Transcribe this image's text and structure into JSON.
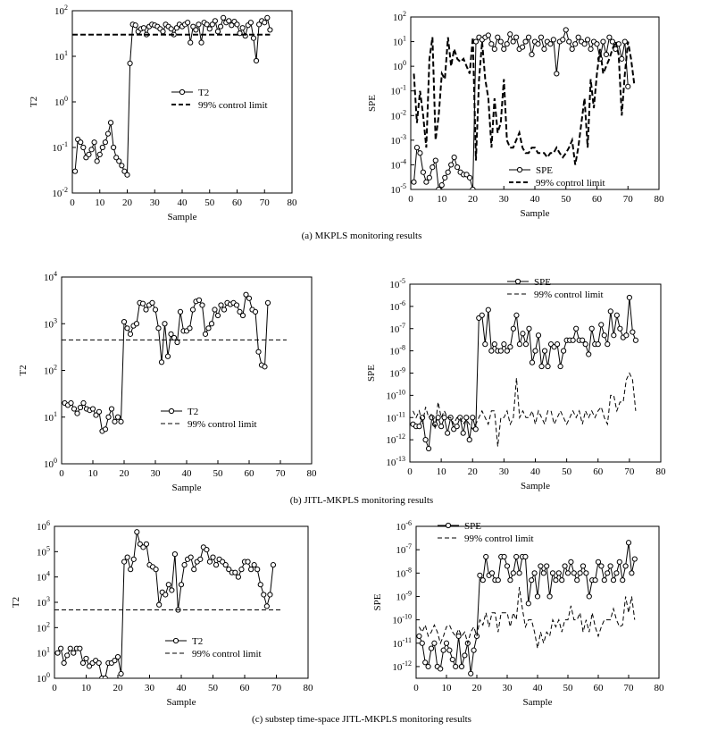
{
  "captions": [
    "(a) MKPLS monitoring results",
    "(b) JITL-MKPLS monitoring results",
    "(c) substep time-space JITL-MKPLS monitoring results"
  ],
  "chart_data": [
    {
      "type": "line",
      "panel": "a-left",
      "xlabel": "Sample",
      "ylabel": "T2",
      "xlim": [
        0,
        80
      ],
      "ylim_exponents": [
        -2,
        2
      ],
      "log_scale_y": true,
      "xticks": [
        0,
        10,
        20,
        30,
        40,
        50,
        60,
        70,
        80
      ],
      "yticks": [
        "10-2",
        "10-1",
        "100",
        "101",
        "102"
      ],
      "legend_position": "center",
      "series": [
        {
          "name": "T2",
          "style": "solid-circle",
          "values": [
            0.03,
            0.15,
            0.13,
            0.1,
            0.06,
            0.07,
            0.09,
            0.13,
            0.05,
            0.07,
            0.1,
            0.13,
            0.2,
            0.35,
            0.1,
            0.06,
            0.05,
            0.04,
            0.03,
            0.025,
            7,
            50,
            48,
            35,
            40,
            42,
            30,
            45,
            50,
            48,
            45,
            40,
            35,
            50,
            45,
            40,
            30,
            42,
            50,
            45,
            50,
            55,
            20,
            45,
            38,
            50,
            20,
            55,
            50,
            40,
            50,
            60,
            35,
            45,
            70,
            55,
            60,
            48,
            58,
            50,
            32,
            42,
            28,
            48,
            55,
            25,
            8,
            50,
            60,
            55,
            70,
            38
          ]
        },
        {
          "name": "99% control limit",
          "style": "thick-dash",
          "constant": 30
        }
      ]
    },
    {
      "type": "line",
      "panel": "a-right",
      "xlabel": "Sample",
      "ylabel": "SPE",
      "xlim": [
        0,
        80
      ],
      "ylim_exponents": [
        -5,
        2
      ],
      "log_scale_y": true,
      "xticks": [
        0,
        10,
        20,
        30,
        40,
        50,
        60,
        70,
        80
      ],
      "yticks": [
        "10-5",
        "10-4",
        "10-3",
        "10-2",
        "10-1",
        "100",
        "101",
        "102"
      ],
      "legend_position": "bottom-center",
      "series": [
        {
          "name": "SPE",
          "style": "solid-circle",
          "values": [
            2e-05,
            0.0005,
            0.0003,
            5e-05,
            2e-05,
            3e-05,
            8e-05,
            0.00015,
            1e-05,
            1.5e-05,
            3e-05,
            5e-05,
            0.0001,
            0.0002,
            8e-05,
            5e-05,
            4e-05,
            4e-05,
            3e-05,
            1e-05,
            10,
            15,
            12,
            15,
            18,
            8,
            5,
            15,
            10,
            5,
            8,
            20,
            10,
            15,
            5,
            6,
            10,
            15,
            3,
            10,
            8,
            15,
            5,
            10,
            8,
            12,
            0.5,
            10,
            12,
            30,
            10,
            5,
            8,
            15,
            10,
            8,
            12,
            5,
            10,
            8,
            2,
            10,
            3,
            15,
            10,
            5,
            8,
            2,
            10,
            0.15
          ]
        },
        {
          "name": "99% control limit",
          "style": "thick-dash",
          "values": [
            0.5,
            0.005,
            0.1,
            0.01,
            0.0005,
            2,
            15,
            0.001,
            0.01,
            0.5,
            0.3,
            15,
            1,
            5,
            2,
            1.5,
            2,
            1,
            0.5,
            15,
            0.00015,
            0.3,
            10,
            0.3,
            0.05,
            0.0005,
            0.05,
            0.002,
            0.005,
            0.3,
            0.001,
            0.0005,
            0.0005,
            0.001,
            0.002,
            0.0005,
            0.0003,
            0.0003,
            0.0005,
            0.0005,
            0.0003,
            0.0003,
            0.0003,
            0.0002,
            0.0003,
            0.0003,
            0.0005,
            0.0003,
            0.0002,
            0.0003,
            0.0005,
            0.001,
            0.0001,
            0.0005,
            0.005,
            0.05,
            0.0005,
            0.3,
            0.02,
            0.5,
            5,
            0.5,
            1,
            2,
            5,
            10,
            3,
            0.01,
            0.5,
            10,
            2,
            0.2
          ]
        }
      ]
    },
    {
      "type": "line",
      "panel": "b-left",
      "xlabel": "Sample",
      "ylabel": "T2",
      "xlim": [
        0,
        80
      ],
      "ylim_exponents": [
        0,
        4
      ],
      "log_scale_y": true,
      "xticks": [
        0,
        10,
        20,
        30,
        40,
        50,
        60,
        70,
        80
      ],
      "yticks": [
        "100",
        "101",
        "102",
        "103",
        "104"
      ],
      "legend_position": "bottom-center",
      "series": [
        {
          "name": "T2",
          "style": "solid-circle",
          "values": [
            20,
            18,
            20,
            15,
            12,
            16,
            20,
            15,
            14,
            15,
            11,
            13,
            5,
            5.5,
            10,
            15,
            8,
            10,
            8,
            1100,
            800,
            600,
            900,
            1000,
            2800,
            2700,
            2000,
            2500,
            2800,
            2000,
            800,
            150,
            1000,
            200,
            600,
            500,
            400,
            1800,
            700,
            700,
            800,
            2000,
            3000,
            3200,
            2500,
            600,
            800,
            1000,
            2000,
            1500,
            2500,
            2000,
            2800,
            2600,
            2800,
            2500,
            1800,
            1500,
            4200,
            3500,
            2000,
            1800,
            250,
            130,
            120,
            2800
          ]
        },
        {
          "name": "99% control limit",
          "style": "thin-dash",
          "constant": 450
        }
      ]
    },
    {
      "type": "line",
      "panel": "b-right",
      "xlabel": "Sample",
      "ylabel": "SPE",
      "xlim": [
        0,
        80
      ],
      "ylim_exponents": [
        -13,
        -5
      ],
      "log_scale_y": true,
      "xticks": [
        0,
        10,
        20,
        30,
        40,
        50,
        60,
        70,
        80
      ],
      "yticks": [
        "10-13",
        "10-12",
        "10-11",
        "10-10",
        "10-9",
        "10-8",
        "10-7",
        "10-6",
        "10-5"
      ],
      "legend_position": "top-left",
      "series": [
        {
          "name": "SPE",
          "style": "solid-circle",
          "values": [
            5e-12,
            4e-12,
            4e-12,
            1e-11,
            1e-12,
            4e-13,
            1e-11,
            5e-12,
            1e-11,
            4e-12,
            1e-11,
            2e-12,
            1e-11,
            3e-12,
            4e-12,
            1e-11,
            2e-12,
            1e-11,
            1e-12,
            1e-11,
            3e-12,
            3e-07,
            4e-07,
            2e-08,
            7e-07,
            1e-08,
            2e-08,
            1e-08,
            1e-08,
            2e-08,
            1e-08,
            1.5e-08,
            1e-07,
            4e-07,
            2e-08,
            6e-08,
            2e-08,
            1e-07,
            3e-09,
            1e-08,
            5e-08,
            2e-09,
            1e-08,
            2e-09,
            2e-08,
            1.5e-08,
            2e-08,
            2e-09,
            1e-08,
            3e-08,
            3e-08,
            3e-08,
            1e-07,
            3e-08,
            3e-08,
            2e-08,
            7e-09,
            1e-07,
            2e-08,
            2e-08,
            1.5e-07,
            5e-08,
            2e-08,
            6e-07,
            5e-08,
            4e-07,
            1e-07,
            4e-08,
            5e-08,
            2.5e-06,
            7e-08,
            3e-08
          ]
        },
        {
          "name": "99% control limit",
          "style": "thin-dash",
          "values": [
            2e-11,
            1e-11,
            2e-11,
            5e-12,
            3e-11,
            1e-11,
            1.5e-11,
            3e-12,
            5e-11,
            1e-11,
            2e-11,
            1e-11,
            1e-11,
            5e-12,
            1e-11,
            1e-11,
            5e-12,
            8e-12,
            5e-12,
            3e-12,
            5e-12,
            1e-11,
            2e-11,
            1e-11,
            5e-12,
            2e-11,
            2e-11,
            5e-13,
            1e-11,
            1e-11,
            2e-11,
            5e-12,
            1e-11,
            6e-10,
            1e-11,
            2e-11,
            1e-11,
            1e-11,
            2e-11,
            5e-12,
            2e-11,
            1e-11,
            5e-12,
            2e-11,
            2e-11,
            5e-12,
            1e-11,
            2e-11,
            1e-11,
            5e-12,
            1e-11,
            2e-11,
            1e-11,
            2e-11,
            5e-12,
            2e-11,
            1e-11,
            2e-11,
            1e-11,
            2e-11,
            3e-11,
            1e-11,
            5e-12,
            1e-10,
            1e-10,
            2e-11,
            5e-11,
            5e-11,
            5e-10,
            1e-09,
            5e-10,
            2e-11
          ]
        }
      ]
    },
    {
      "type": "line",
      "panel": "c-left",
      "xlabel": "Sample",
      "ylabel": "T2",
      "xlim": [
        0,
        80
      ],
      "ylim_exponents": [
        0,
        6
      ],
      "log_scale_y": true,
      "xticks": [
        0,
        10,
        20,
        30,
        40,
        50,
        60,
        70,
        80
      ],
      "yticks": [
        "100",
        "101",
        "102",
        "103",
        "104",
        "105",
        "106"
      ],
      "legend_position": "bottom-center",
      "series": [
        {
          "name": "T2",
          "style": "solid-circle",
          "values": [
            10,
            15,
            4,
            8,
            15,
            10,
            15,
            15,
            4,
            6,
            3,
            4,
            5,
            4,
            1,
            1,
            4,
            4,
            5,
            7,
            1.5,
            40000,
            60000,
            20000,
            50000,
            600000,
            200000,
            150000,
            200000,
            30000,
            25000,
            20000,
            800,
            2500,
            2000,
            5000,
            3000,
            80000,
            500,
            5000,
            30000,
            50000,
            60000,
            20000,
            40000,
            50000,
            150000,
            120000,
            40000,
            60000,
            30000,
            50000,
            40000,
            30000,
            20000,
            15000,
            15000,
            10000,
            20000,
            40000,
            40000,
            20000,
            30000,
            20000,
            5000,
            2000,
            700,
            2000,
            30000
          ]
        },
        {
          "name": "99% control limit",
          "style": "thin-dash",
          "constant": 500
        }
      ]
    },
    {
      "type": "line",
      "panel": "c-right",
      "xlabel": "Sample",
      "ylabel": "SPE",
      "xlim": [
        0,
        80
      ],
      "ylim_exponents": [
        -12.5,
        -6
      ],
      "log_scale_y": true,
      "xticks": [
        0,
        10,
        20,
        30,
        40,
        50,
        60,
        70,
        80
      ],
      "yticks": [
        "10-12",
        "10-11",
        "10-10",
        "10-9",
        "10-8",
        "10-7",
        "10-6"
      ],
      "legend_position": "top-left",
      "series": [
        {
          "name": "SPE",
          "style": "solid-circle",
          "values": [
            2e-11,
            1e-11,
            1.5e-12,
            1e-12,
            6e-12,
            1e-11,
            1e-12,
            8e-13,
            5e-12,
            1e-11,
            5e-12,
            2e-12,
            1e-12,
            2e-11,
            1e-12,
            3e-12,
            1e-11,
            5e-13,
            5e-12,
            2e-11,
            8e-09,
            5e-09,
            5e-08,
            8e-09,
            1e-08,
            5e-09,
            5e-09,
            5e-08,
            5e-08,
            2e-08,
            5e-09,
            1e-08,
            5e-08,
            1e-08,
            5e-08,
            5e-08,
            5e-10,
            5e-09,
            1e-08,
            1e-09,
            2e-08,
            1e-08,
            2e-08,
            1e-09,
            1e-08,
            5e-09,
            1e-08,
            5e-09,
            2e-08,
            1e-08,
            3e-08,
            1e-08,
            5e-09,
            1e-08,
            2e-08,
            1e-08,
            1e-09,
            5e-09,
            5e-09,
            3e-08,
            2e-08,
            5e-09,
            1e-08,
            2e-08,
            5e-09,
            1e-08,
            3e-08,
            5e-09,
            2e-08,
            2e-07,
            1e-08,
            4e-08
          ]
        },
        {
          "name": "99% control limit",
          "style": "thin-dash",
          "values": [
            5e-11,
            3e-11,
            6e-11,
            2e-11,
            3e-11,
            6e-11,
            3e-11,
            1e-11,
            2e-11,
            5e-11,
            6e-11,
            3e-11,
            2e-11,
            4e-11,
            2e-11,
            3e-11,
            1e-11,
            3e-11,
            5e-11,
            2e-11,
            1e-10,
            6e-11,
            2e-10,
            5e-11,
            2e-10,
            2e-10,
            3e-11,
            2e-10,
            2e-10,
            2e-10,
            5e-11,
            2e-10,
            1e-10,
            2.5e-09,
            3e-10,
            5e-11,
            1e-10,
            1e-10,
            3e-11,
            6e-12,
            3e-11,
            1e-11,
            3e-11,
            2e-11,
            1e-10,
            5e-11,
            1e-10,
            3e-11,
            1e-10,
            1e-10,
            4e-10,
            1e-10,
            1e-10,
            2e-10,
            3e-11,
            1e-10,
            3e-11,
            2e-10,
            5e-11,
            2e-11,
            5e-11,
            1e-10,
            1e-10,
            1e-10,
            3e-10,
            1e-10,
            5e-11,
            6e-11,
            1e-09,
            2e-10,
            1e-09,
            1e-10
          ]
        }
      ]
    }
  ]
}
